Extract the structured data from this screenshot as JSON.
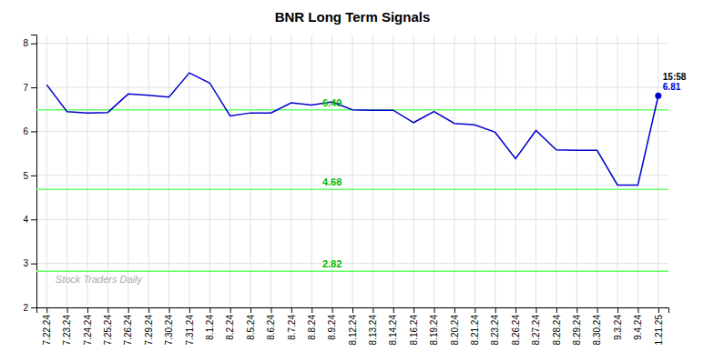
{
  "chart_data": {
    "type": "line",
    "title": "BNR Long Term Signals",
    "categories": [
      "7.22.24",
      "7.23.24",
      "7.24.24",
      "7.25.24",
      "7.26.24",
      "7.29.24",
      "7.30.24",
      "7.31.24",
      "8.1.24",
      "8.2.24",
      "8.5.24",
      "8.6.24",
      "8.7.24",
      "8.8.24",
      "8.9.24",
      "8.12.24",
      "8.13.24",
      "8.14.24",
      "8.16.24",
      "8.19.24",
      "8.20.24",
      "8.21.24",
      "8.23.24",
      "8.26.24",
      "8.27.24",
      "8.28.24",
      "8.29.24",
      "8.30.24",
      "9.3.24",
      "9.4.24",
      "1.21.25"
    ],
    "values": [
      7.06,
      6.45,
      6.42,
      6.43,
      6.85,
      6.82,
      6.78,
      7.33,
      7.1,
      6.35,
      6.42,
      6.42,
      6.65,
      6.6,
      6.67,
      6.49,
      6.48,
      6.48,
      6.2,
      6.45,
      6.18,
      6.15,
      5.98,
      5.38,
      6.02,
      5.58,
      5.57,
      5.57,
      4.78,
      4.78,
      6.81
    ],
    "color": "#0000cc",
    "reference_lines": [
      {
        "value": 6.49,
        "label": "6.49",
        "color": "#66ff66",
        "label_color": "#00bb00"
      },
      {
        "value": 4.68,
        "label": "4.68",
        "color": "#66ff66",
        "label_color": "#00bb00"
      },
      {
        "value": 2.82,
        "label": "2.82",
        "color": "#66ff66",
        "label_color": "#00bb00"
      }
    ],
    "annotations": [
      {
        "text": "15:58",
        "color": "#000000"
      },
      {
        "text": "6.81",
        "color": "#0000cc"
      }
    ],
    "watermark": "Stock Traders Daily",
    "ylim": [
      2.0,
      8.2
    ],
    "yticks": [
      2,
      3,
      4,
      5,
      6,
      7,
      8
    ],
    "grid": true
  }
}
